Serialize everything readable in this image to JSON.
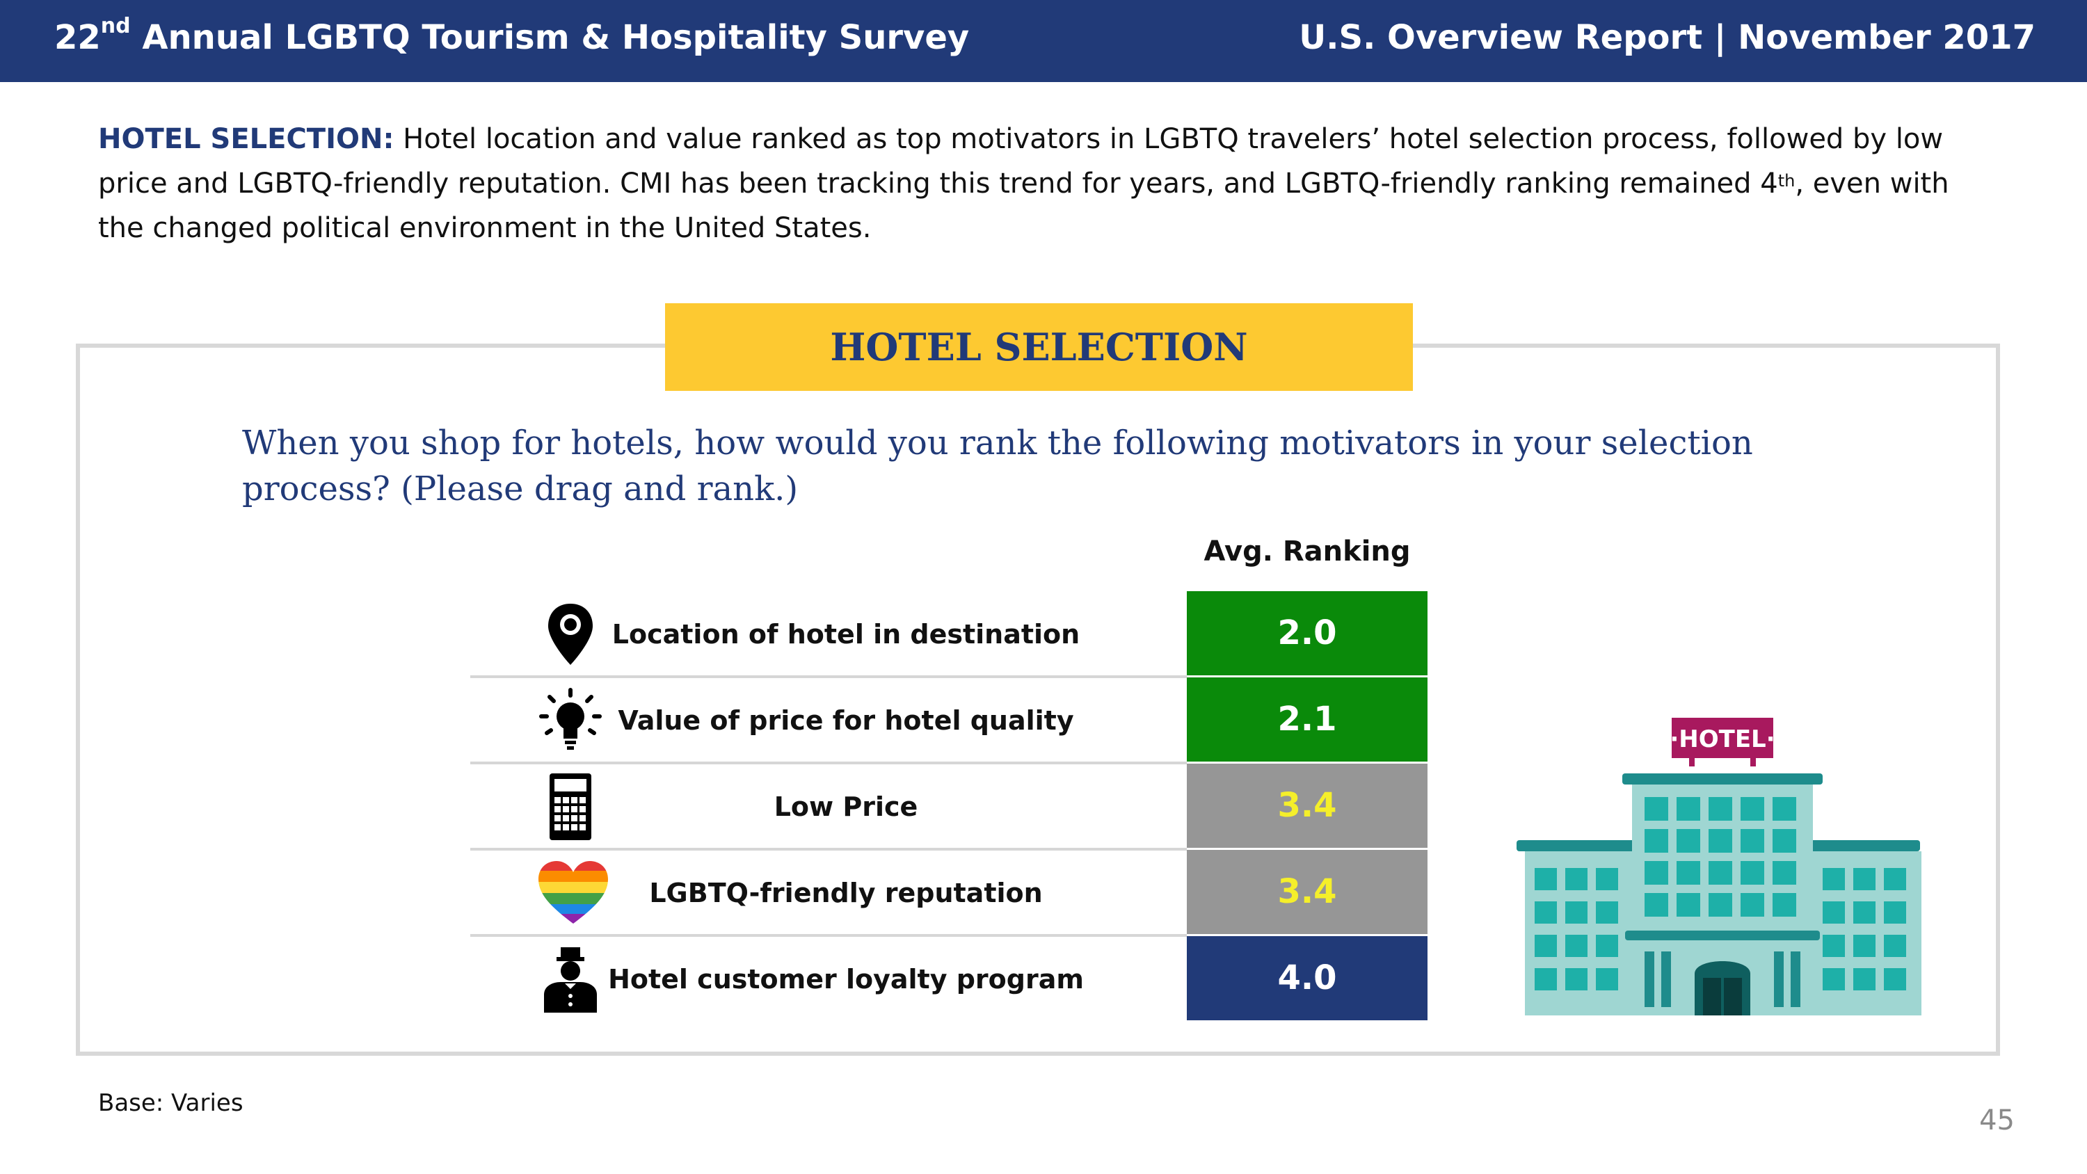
{
  "header": {
    "title_prefix": "22",
    "title_sup": "nd",
    "title_rest": " Annual LGBTQ Tourism & Hospitality Survey",
    "report": "U.S. Overview Report | November 2017"
  },
  "intro": {
    "lead": "HOTEL SELECTION:",
    "text_a": " Hotel location and value ranked as top motivators in LGBTQ travelers’ hotel selection process, followed by low price and LGBTQ-friendly reputation. CMI has been tracking this trend for years, and LGBTQ-friendly ranking remained 4",
    "text_sup": "th",
    "text_b": ", even with the changed political environment in the United States."
  },
  "section": {
    "banner": "HOTEL SELECTION",
    "question": "When you shop for hotels, how would you rank the following motivators in your selection process? (Please drag and rank.)",
    "column_header": "Avg. Ranking"
  },
  "table": {
    "rows": [
      {
        "label": "Location of hotel in destination",
        "value": "2.0",
        "icon": "location-pin-icon",
        "bg": "#0a8a0a",
        "fg": "#ffffff"
      },
      {
        "label": "Value of price for hotel quality",
        "value": "2.1",
        "icon": "lightbulb-icon",
        "bg": "#0a8a0a",
        "fg": "#ffffff"
      },
      {
        "label": "Low Price",
        "value": "3.4",
        "icon": "calculator-icon",
        "bg": "#969696",
        "fg": "#f5ef2a"
      },
      {
        "label": "LGBTQ-friendly reputation",
        "value": "3.4",
        "icon": "rainbow-heart-icon",
        "bg": "#969696",
        "fg": "#f5ef2a"
      },
      {
        "label": "Hotel customer loyalty program",
        "value": "4.0",
        "icon": "bellhop-icon",
        "bg": "#213a78",
        "fg": "#ffffff"
      }
    ]
  },
  "hotel_sign": "·HOTEL·",
  "footer": {
    "base": "Base: Varies",
    "page": "45"
  },
  "colors": {
    "header_bg": "#213a78",
    "banner_bg": "#fdc931",
    "panel_border": "#d8d8d8"
  }
}
